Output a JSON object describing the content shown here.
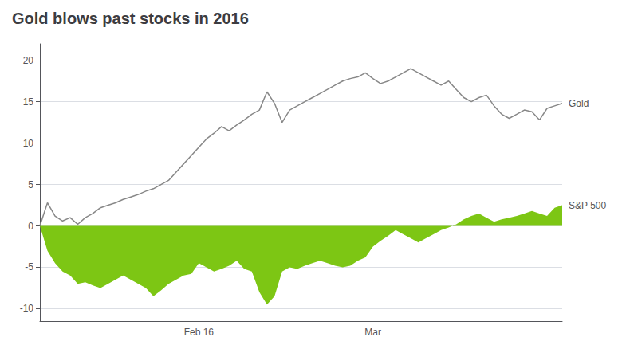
{
  "chart_data": {
    "type": "line",
    "title": "Gold blows past stocks in 2016",
    "categories": [
      null,
      null,
      null,
      null,
      null,
      null,
      null,
      null,
      null,
      null,
      null,
      null,
      null,
      null,
      null,
      null,
      null,
      null,
      null,
      null,
      null,
      "Feb 16",
      null,
      null,
      null,
      null,
      null,
      null,
      null,
      null,
      null,
      null,
      null,
      null,
      null,
      null,
      null,
      null,
      null,
      null,
      null,
      null,
      null,
      null,
      "Mar",
      null,
      null,
      null,
      null,
      null,
      null,
      null,
      null,
      null,
      null,
      null,
      null,
      null,
      null,
      null,
      null,
      null,
      null,
      null,
      null,
      null,
      null,
      null,
      null,
      null
    ],
    "series": [
      {
        "name": "S&P 500",
        "type": "area",
        "color": "#7dc614",
        "values": [
          0.0,
          -3.0,
          -4.5,
          -5.5,
          -6.0,
          -7.0,
          -6.8,
          -7.2,
          -7.5,
          -7.0,
          -6.5,
          -6.0,
          -6.5,
          -7.0,
          -7.5,
          -8.5,
          -7.8,
          -7.0,
          -6.5,
          -6.0,
          -5.8,
          -4.5,
          -5.0,
          -5.5,
          -5.2,
          -4.8,
          -4.2,
          -5.2,
          -5.5,
          -8.0,
          -9.5,
          -8.5,
          -5.5,
          -5.0,
          -5.2,
          -4.8,
          -4.5,
          -4.2,
          -4.5,
          -4.8,
          -5.0,
          -4.8,
          -4.2,
          -3.8,
          -2.5,
          -1.8,
          -1.2,
          -0.5,
          -1.0,
          -1.5,
          -2.0,
          -1.5,
          -1.0,
          -0.5,
          -0.2,
          0.2,
          0.8,
          1.2,
          1.5,
          1.0,
          0.5,
          0.8,
          1.0,
          1.2,
          1.5,
          1.8,
          1.5,
          1.2,
          2.2,
          2.5
        ]
      },
      {
        "name": "Gold",
        "type": "line",
        "color": "#888888",
        "values": [
          0.0,
          2.8,
          1.2,
          0.6,
          1.0,
          0.2,
          1.0,
          1.5,
          2.2,
          2.5,
          2.8,
          3.2,
          3.5,
          3.8,
          4.2,
          4.5,
          5.0,
          5.5,
          6.5,
          7.5,
          8.5,
          9.5,
          10.5,
          11.2,
          12.0,
          11.5,
          12.2,
          12.8,
          13.5,
          14.0,
          16.2,
          14.8,
          12.5,
          14.0,
          14.5,
          15.0,
          15.5,
          16.0,
          16.5,
          17.0,
          17.5,
          17.8,
          18.0,
          18.5,
          17.8,
          17.2,
          17.5,
          18.0,
          18.5,
          19.0,
          18.5,
          18.0,
          17.5,
          17.0,
          17.5,
          16.5,
          15.5,
          15.0,
          15.5,
          15.8,
          14.5,
          13.5,
          13.0,
          13.5,
          14.0,
          13.8,
          12.8,
          14.2,
          14.5,
          14.8
        ]
      }
    ],
    "ylim": [
      -11.5,
      22
    ],
    "yticks": [
      -10,
      -5,
      0,
      5,
      10,
      15,
      20
    ],
    "grid": true
  }
}
